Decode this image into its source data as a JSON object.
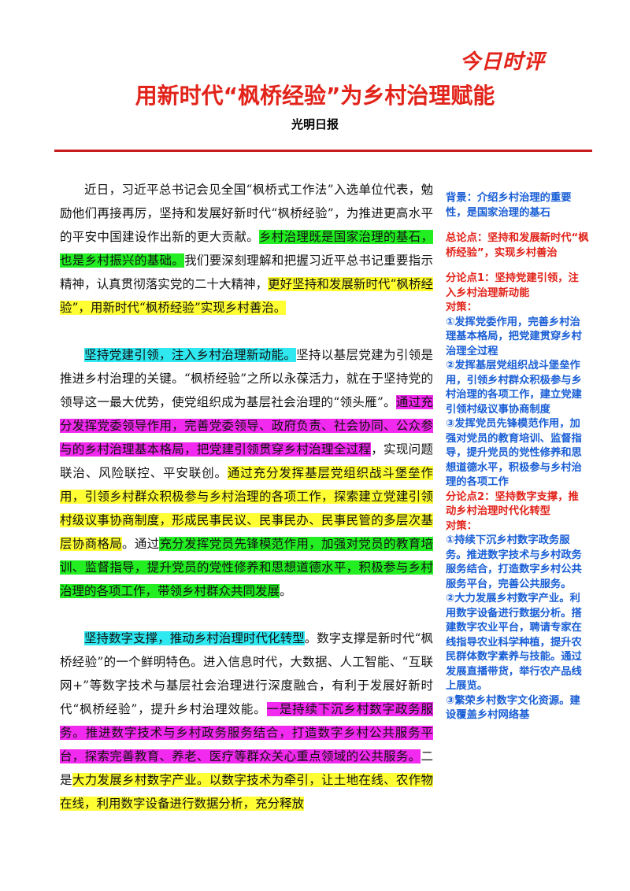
{
  "logo": "今日时评",
  "title": "用新时代“枫桥经验”为乡村治理赋能",
  "source": "光明日报",
  "para1": {
    "s1": "近日，习近平总书记会见全国“枫桥式工作法”入选单位代表，勉励他们再接再厉，坚持和发展好新时代“枫桥经验”，为推进更高水平的平安中国建设作出新的更大贡献。",
    "s2": "乡村治理既是国家治理的基石，也是乡村振兴的基础。",
    "s3": "我们要深刻理解和把握习近平总书记重要指示精神，认真贯彻落实党的二十大精神，",
    "s4": "更好坚持和发展新时代“枫桥经验”，用新时代“枫桥经验”实现乡村善治。"
  },
  "para2": {
    "s1": "坚持党建引领，注入乡村治理新动能。",
    "s2": "坚持以基层党建为引领是推进乡村治理的关键。“枫桥经验”之所以永葆活力，就在于坚持党的领导这一最大优势，使党组织成为基层社会治理的“领头雁”。",
    "s3": "通过充分发挥党委领导作用，完善党委领导、政府负责、社会协同、公众参与的乡村治理基本格局，把党建引领贯穿乡村治理全过程",
    "s4": "，实现问题联治、风险联控、平安联创。",
    "s5": "通过充分发挥基层党组织战斗堡垒作用，引领乡村群众积极参与乡村治理的各项工作，探索建立党建引领村级议事协商制度，形成民事民议、民事民办、民事民管的多层次基层协商格局",
    "s6": "。通过",
    "s7": "充分发挥党员先锋模范作用，加强对党员的教育培训、监督指导，提升党员的党性修养和思想道德水平，积极参与乡村治理的各项工作，带领乡村群众共同发展",
    "s8": "。"
  },
  "para3": {
    "s1": "坚持数字支撑，推动乡村治理时代化转型",
    "s2": "。数字支撑是新时代“枫桥经验”的一个鲜明特色。进入信息时代，大数据、人工智能、“互联网+”等数字技术与基层社会治理进行深度融合，有利于发展好新时代“枫桥经验”，提升乡村治理效能。",
    "s3": "一是持续下沉乡村数字政务服务。推进数字技术与乡村政务服务结合，打造数字乡村公共服务平台，探索完善教育、养老、医疗等群众关心重点领域的公共服务。",
    "s4": "二是",
    "s5": "大力发展乡村数字产业。以数字技术为牵引，让土地在线、农作物在线，利用数字设备进行数据分析，充分释放"
  },
  "side": {
    "background": "背景：介绍乡村治理的重要性，是国家治理的基石",
    "thesis": "总论点：坚持和发展新时代“枫桥经验”，实现乡村善治",
    "sub1_title": "分论点1：坚持党建引领，注入乡村治理新动能",
    "sub1_label": "对策：",
    "sub1_items": [
      "①发挥党委作用，完善乡村治理基本格局，把党建贯穿乡村治理全过程",
      "②发挥基层党组织战斗堡垒作用，引领乡村群众积极参与乡村治理的各项工作，建立党建引领村级议事协商制度",
      "③发挥党员先锋模范作用，加强对党员的教育培训、监督指导，提升党员的党性修养和思想道德水平，积极参与乡村治理的各项工作"
    ],
    "sub2_title": "分论点2：坚持数字支撑，推动乡村治理时代化转型",
    "sub2_label": "对策：",
    "sub2_items": [
      "①持续下沉乡村数字政务服务。推进数字技术与乡村政务服务结合，打造数字乡村公共服务平台，完善公共服务。",
      "②大力发展乡村数字产业。利用数字设备进行数据分析。搭建数字农业平台，聘请专家在线指导农业科学种植，提升农民群体数字素养与技能。通过发展直播带货，举行农产品线上展览。",
      "③繁荣乡村数字文化资源。建设覆盖乡村网络基"
    ]
  },
  "colors": {
    "accent_red": "#e2231a",
    "side_blue": "#1a5fd6",
    "highlight_green": "#22ee22",
    "highlight_yellow": "#ffff33",
    "highlight_cyan": "#2fe8f0",
    "highlight_magenta": "#f229ee"
  }
}
